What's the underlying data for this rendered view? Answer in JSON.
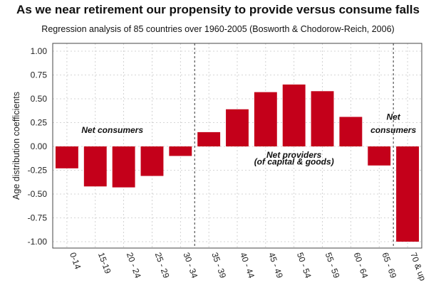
{
  "chart_data": {
    "type": "bar",
    "title": "As we near retirement our propensity to provide versus consume falls",
    "subtitle": "Regression analysis of 85 countries over 1960-2005 (Bosworth & Chodorow-Reich, 2006)",
    "xlabel": "",
    "ylabel": "Age distribution coefficients",
    "ylim": [
      -1.0,
      1.0
    ],
    "yticks": [
      "1.00",
      "0.75",
      "0.50",
      "0.25",
      "0.00",
      "-0.25",
      "-0.50",
      "-0.75",
      "-1.00"
    ],
    "categories": [
      "0-14",
      "15-19",
      "20 - 24",
      "25 - 29",
      "30 - 34",
      "35 - 39",
      "40 - 44",
      "45 - 49",
      "50 - 54",
      "55 - 59",
      "60 - 64",
      "65 - 69",
      "70 & up"
    ],
    "values": [
      -0.23,
      -0.42,
      -0.43,
      -0.31,
      -0.1,
      0.15,
      0.39,
      0.57,
      0.65,
      0.58,
      0.31,
      -0.2,
      -1.0
    ],
    "grid": true,
    "bar_color": "#c4001a",
    "dividers_after_category": [
      "30 - 34",
      "65 - 69"
    ],
    "annotations": [
      {
        "text": "Net consumers",
        "anchor_category": "15-19",
        "y": 0.17
      },
      {
        "text": "Net providers",
        "anchor_category": "50 - 54",
        "y": -0.09
      },
      {
        "text": "(of capital & goods)",
        "anchor_category": "50 - 54",
        "y": -0.16
      },
      {
        "text": "Net",
        "anchor_category": "65 - 69",
        "y": 0.31
      },
      {
        "text": "consumers",
        "anchor_category": "65 - 69",
        "y": 0.17
      }
    ]
  }
}
